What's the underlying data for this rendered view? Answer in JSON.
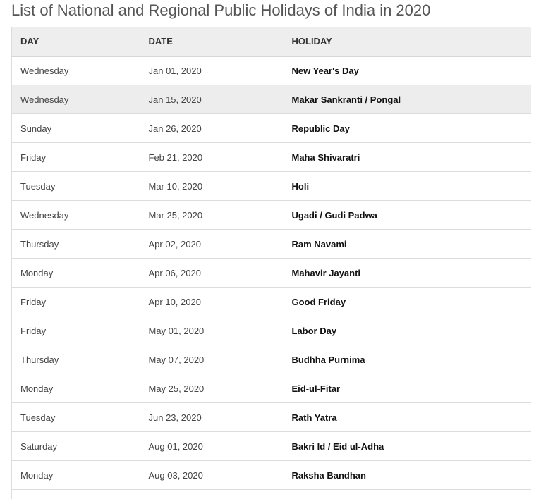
{
  "page_title": "List of National and Regional Public Holidays of India in 2020",
  "table": {
    "headers": [
      "DAY",
      "DATE",
      "HOLIDAY"
    ],
    "highlighted_row_index": 1,
    "rows": [
      {
        "day": "Wednesday",
        "date": "Jan 01, 2020",
        "holiday": "New Year's Day"
      },
      {
        "day": "Wednesday",
        "date": "Jan 15, 2020",
        "holiday": "Makar Sankranti / Pongal"
      },
      {
        "day": "Sunday",
        "date": "Jan 26, 2020",
        "holiday": "Republic Day"
      },
      {
        "day": "Friday",
        "date": "Feb 21, 2020",
        "holiday": "Maha Shivaratri"
      },
      {
        "day": "Tuesday",
        "date": "Mar 10, 2020",
        "holiday": "Holi"
      },
      {
        "day": "Wednesday",
        "date": "Mar 25, 2020",
        "holiday": "Ugadi / Gudi Padwa"
      },
      {
        "day": "Thursday",
        "date": "Apr 02, 2020",
        "holiday": "Ram Navami"
      },
      {
        "day": "Monday",
        "date": "Apr 06, 2020",
        "holiday": "Mahavir Jayanti"
      },
      {
        "day": "Friday",
        "date": "Apr 10, 2020",
        "holiday": "Good Friday"
      },
      {
        "day": "Friday",
        "date": "May 01, 2020",
        "holiday": "Labor Day"
      },
      {
        "day": "Thursday",
        "date": "May 07, 2020",
        "holiday": "Budhha Purnima"
      },
      {
        "day": "Monday",
        "date": "May 25, 2020",
        "holiday": "Eid-ul-Fitar"
      },
      {
        "day": "Tuesday",
        "date": "Jun 23, 2020",
        "holiday": "Rath Yatra"
      },
      {
        "day": "Saturday",
        "date": "Aug 01, 2020",
        "holiday": "Bakri Id / Eid ul-Adha"
      },
      {
        "day": "Monday",
        "date": "Aug 03, 2020",
        "holiday": "Raksha Bandhan"
      },
      {
        "day": "",
        "date": "",
        "holiday": ""
      }
    ]
  }
}
